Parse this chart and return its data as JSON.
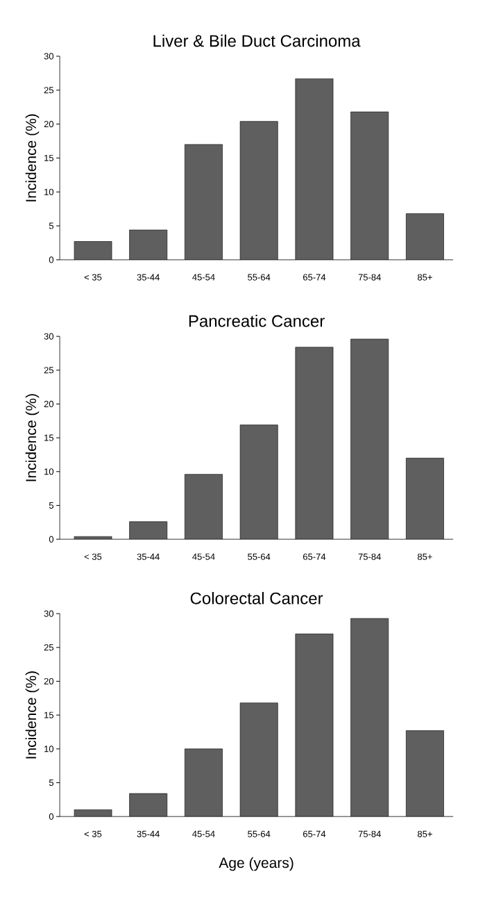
{
  "chart_data": [
    {
      "type": "bar",
      "title": "Liver & Bile Duct Carcinoma",
      "ylabel": "Incidence (%)",
      "categories": [
        "< 35",
        "35-44",
        "45-54",
        "55-64",
        "65-74",
        "75-84",
        "85+"
      ],
      "values": [
        2.7,
        4.4,
        17.0,
        20.4,
        26.7,
        21.8,
        6.8
      ],
      "color": "#5f5f5f",
      "ylim": [
        0,
        30
      ],
      "yticks": [
        0,
        5,
        10,
        15,
        20,
        25,
        30
      ]
    },
    {
      "type": "bar",
      "title": "Pancreatic Cancer",
      "ylabel": "Incidence (%)",
      "categories": [
        "< 35",
        "35-44",
        "45-54",
        "55-64",
        "65-74",
        "75-84",
        "85+"
      ],
      "values": [
        0.4,
        2.6,
        9.6,
        16.9,
        28.4,
        29.6,
        12.0
      ],
      "color": "#5f5f5f",
      "ylim": [
        0,
        30
      ],
      "yticks": [
        0,
        5,
        10,
        15,
        20,
        25,
        30
      ]
    },
    {
      "type": "bar",
      "title": "Colorectal Cancer",
      "ylabel": "Incidence (%)",
      "xlabel": "Age (years)",
      "categories": [
        "< 35",
        "35-44",
        "45-54",
        "55-64",
        "65-74",
        "75-84",
        "85+"
      ],
      "values": [
        1.0,
        3.4,
        10.0,
        16.8,
        27.0,
        29.3,
        12.7
      ],
      "color": "#5f5f5f",
      "ylim": [
        0,
        30
      ],
      "yticks": [
        0,
        5,
        10,
        15,
        20,
        25,
        30
      ]
    }
  ]
}
